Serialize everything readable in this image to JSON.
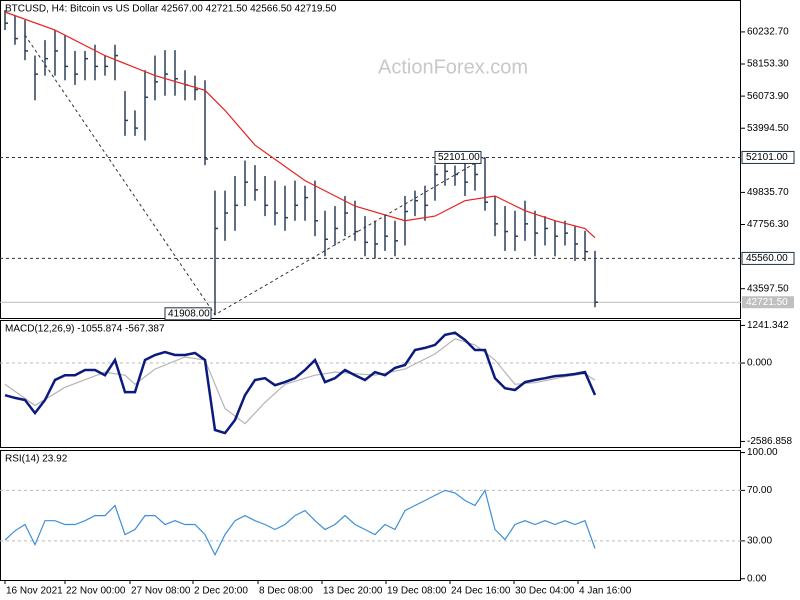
{
  "chart_data": [
    {
      "type": "ohlc",
      "title": "BTCUSD, H4:  Bitcoin vs US Dollar  42567.00 42721.50 42566.50 42719.50",
      "watermark": "ActionForex.com",
      "color": "#2b3f57",
      "xlim": [
        -0.5,
        73.6
      ],
      "ylim": [
        41700,
        62300
      ],
      "yticks": [
        {
          "value": 60232.7,
          "label": "60232.70"
        },
        {
          "value": 58153.3,
          "label": "58153.30"
        },
        {
          "value": 56073.9,
          "label": "56073.90"
        },
        {
          "value": 53994.5,
          "label": "53994.50"
        },
        {
          "value": 49835.7,
          "label": "49835.70"
        },
        {
          "value": 47756.3,
          "label": "47756.30"
        },
        {
          "value": 43597.5,
          "label": "43597.50"
        }
      ],
      "high": [
        61650,
        61300,
        61000,
        58700,
        59700,
        60350,
        60000,
        59000,
        59000,
        59400,
        58700,
        59400,
        56400,
        55150,
        57750,
        58700,
        59050,
        59050,
        57750,
        57400,
        57100,
        49950,
        49950,
        50900,
        51900,
        51600,
        50900,
        50600,
        50270,
        50600,
        50270,
        50600,
        48650,
        48950,
        49600,
        49300,
        48300,
        48000,
        48300,
        48000,
        49600,
        49950,
        50270,
        51600,
        51900,
        51580,
        51900,
        51900,
        52101,
        49600,
        48950,
        48650,
        49300,
        48650,
        48300,
        48000,
        48000,
        47650,
        47350,
        46050
      ],
      "low": [
        60350,
        59400,
        58400,
        55800,
        57400,
        57400,
        57100,
        56800,
        57100,
        57100,
        57400,
        57100,
        53500,
        53500,
        53200,
        55800,
        56100,
        56100,
        55800,
        55800,
        51600,
        41908,
        46700,
        47350,
        48950,
        49300,
        48300,
        47700,
        47350,
        48000,
        48000,
        47000,
        45700,
        46400,
        47000,
        46700,
        45700,
        45550,
        46050,
        45700,
        46400,
        48300,
        48000,
        49300,
        50270,
        50270,
        49600,
        49950,
        48650,
        47000,
        46050,
        46050,
        46700,
        45700,
        46400,
        45700,
        46400,
        45400,
        45400,
        42400
      ],
      "close": [
        60800,
        59800,
        59000,
        57500,
        58500,
        59000,
        58000,
        57500,
        58500,
        58000,
        58000,
        58700,
        54500,
        54000,
        56000,
        57000,
        57500,
        57200,
        56800,
        56500,
        52000,
        47500,
        48500,
        49000,
        50500,
        50000,
        49000,
        48500,
        48200,
        49000,
        49500,
        48000,
        46800,
        47500,
        48500,
        47300,
        46600,
        46500,
        47000,
        46700,
        48600,
        49300,
        49000,
        51000,
        51200,
        51000,
        50500,
        51000,
        49200,
        47800,
        47300,
        47000,
        47800,
        47200,
        47500,
        47000,
        47200,
        46500,
        46000,
        42719.5
      ],
      "ma": {
        "color": "#e8201e",
        "x": [
          0,
          5,
          10,
          15,
          20,
          22,
          25,
          30,
          35,
          40,
          43,
          46,
          49,
          52,
          55,
          58,
          59
        ],
        "values": [
          61520,
          60350,
          58700,
          57400,
          56450,
          55150,
          52900,
          50600,
          48950,
          48000,
          48300,
          49300,
          49600,
          48650,
          48000,
          47500,
          46900
        ]
      },
      "levels": [
        {
          "value": 52101,
          "label": "52101.00"
        },
        {
          "value": 45560,
          "label": "45560.00"
        }
      ],
      "last": {
        "value": 42721.5,
        "label": "42721.50"
      },
      "zigzag": {
        "x": [
          2,
          21,
          48
        ],
        "values": [
          60025,
          41908,
          52101
        ]
      },
      "annotations": [
        {
          "text": "52101.00",
          "x": 48,
          "y": 52101
        },
        {
          "text": "41908.00",
          "x": 21,
          "y": 41908
        }
      ]
    },
    {
      "type": "macd",
      "title": "MACD(12,26,9) -1055.874 -567.387",
      "xlim": [
        -0.5,
        73.6
      ],
      "ylim": [
        -2770,
        1420
      ],
      "yticks": [
        1241.342,
        {
          "value": 0,
          "label": "0.000"
        },
        -2586.858
      ],
      "zero_line": true,
      "series": [
        {
          "color": "#0c1a7e",
          "values": [
            -1060,
            -1150,
            -1220,
            -1650,
            -1220,
            -560,
            -400,
            -400,
            -230,
            -230,
            -400,
            100,
            -960,
            -960,
            100,
            264,
            363,
            264,
            264,
            330,
            100,
            -2210,
            -2310,
            -1880,
            -1060,
            -560,
            -500,
            -730,
            -630,
            -500,
            -230,
            100,
            -630,
            -500,
            -230,
            -400,
            -560,
            -300,
            -400,
            -160,
            -66,
            430,
            500,
            600,
            930,
            1000,
            760,
            430,
            430,
            -500,
            -830,
            -890,
            -630,
            -560,
            -500,
            -430,
            -400,
            -360,
            -300,
            -1055.874
          ]
        },
        {
          "color": "#b4b4b4",
          "x": [
            0,
            3,
            6,
            10,
            12,
            13,
            15,
            18,
            20,
            22,
            24,
            26,
            28,
            31,
            33,
            37,
            40,
            43,
            45,
            47,
            49,
            51,
            53,
            56,
            58,
            59
          ],
          "values": [
            -700,
            -1400,
            -800,
            -300,
            -400,
            -700,
            -200,
            200,
            100,
            -1500,
            -2000,
            -1300,
            -700,
            -400,
            -300,
            -400,
            -200,
            300,
            800,
            600,
            100,
            -700,
            -650,
            -450,
            -350,
            -567.387
          ]
        }
      ]
    },
    {
      "type": "line",
      "title": "RSI(14) 23.92",
      "xlim": [
        -0.5,
        73.6
      ],
      "ylim": [
        -1,
        102
      ],
      "yticks": [
        {
          "value": 100,
          "label": "100.00"
        },
        {
          "value": 70,
          "label": "70.00"
        },
        {
          "value": 30,
          "label": "30.00"
        },
        {
          "value": 0,
          "label": "0.00"
        }
      ],
      "grid_values": [
        70,
        30
      ],
      "color": "#3d8fd9",
      "values": [
        30.8,
        38,
        43,
        27,
        46,
        46,
        43,
        43,
        46,
        50,
        50,
        58,
        35,
        39,
        50,
        50,
        43,
        46,
        43,
        43,
        35,
        19,
        35,
        46,
        50,
        46,
        43,
        39,
        43,
        50,
        54,
        46,
        39,
        43,
        50,
        43,
        39,
        35,
        43,
        39,
        54,
        58,
        62,
        66,
        70,
        68,
        62,
        58,
        70,
        39,
        31,
        43,
        46,
        43,
        46,
        43,
        46,
        43,
        46,
        23.92
      ],
      "xticks": [
        {
          "value": 0,
          "label": "16 Nov 2021"
        },
        {
          "value": 6,
          "label": "22 Nov 00:00"
        },
        {
          "value": 12.5,
          "label": "27 Nov 08:00"
        },
        {
          "value": 18.8,
          "label": "2 Dec 20:00"
        },
        {
          "value": 25.3,
          "label": "8 Dec 08:00"
        },
        {
          "value": 31.7,
          "label": "13 Dec 20:00"
        },
        {
          "value": 38.1,
          "label": "19 Dec 08:00"
        },
        {
          "value": 44.5,
          "label": "24 Dec 16:00"
        },
        {
          "value": 50.9,
          "label": "30 Dec 04:00"
        },
        {
          "value": 57.3,
          "label": "4 Jan 16:00"
        }
      ]
    }
  ]
}
